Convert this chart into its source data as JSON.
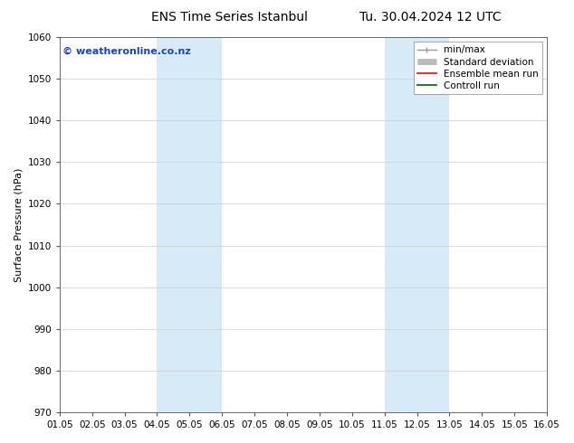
{
  "title_left": "ENS Time Series Istanbul",
  "title_right": "Tu. 30.04.2024 12 UTC",
  "ylabel": "Surface Pressure (hPa)",
  "ylim": [
    970,
    1060
  ],
  "yticks": [
    970,
    980,
    990,
    1000,
    1010,
    1020,
    1030,
    1040,
    1050,
    1060
  ],
  "xtick_labels": [
    "01.05",
    "02.05",
    "03.05",
    "04.05",
    "05.05",
    "06.05",
    "07.05",
    "08.05",
    "09.05",
    "10.05",
    "11.05",
    "12.05",
    "13.05",
    "14.05",
    "15.05",
    "16.05"
  ],
  "xlim_min": 0,
  "xlim_max": 15,
  "shaded_regions": [
    {
      "x_start": 3,
      "x_end": 5,
      "color": "#d6eaf8"
    },
    {
      "x_start": 10,
      "x_end": 12,
      "color": "#d6eaf8"
    }
  ],
  "watermark_text": "© weatheronline.co.nz",
  "watermark_color": "#1a44bb",
  "watermark_fontsize": 8,
  "legend_entries": [
    {
      "label": "min/max",
      "color": "#999999",
      "linewidth": 1.0
    },
    {
      "label": "Standard deviation",
      "color": "#bbbbbb",
      "linewidth": 5
    },
    {
      "label": "Ensemble mean run",
      "color": "#ff0000",
      "linewidth": 1.2
    },
    {
      "label": "Controll run",
      "color": "#006600",
      "linewidth": 1.2
    }
  ],
  "title_fontsize": 10,
  "ylabel_fontsize": 8,
  "tick_fontsize": 7.5,
  "legend_fontsize": 7.5,
  "background_color": "#ffffff",
  "grid_color": "#cccccc",
  "spine_color": "#555555"
}
